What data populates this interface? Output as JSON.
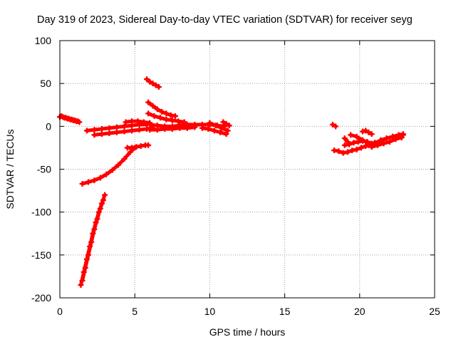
{
  "chart_data": {
    "type": "scatter",
    "title": "Day 319 of 2023, Sidereal Day-to-day VTEC variation (SDTVAR) for receiver seyg",
    "xlabel": "GPS time / hours",
    "ylabel": "SDTVAR / TECUs",
    "xlim": [
      0,
      25
    ],
    "ylim": [
      -200,
      100
    ],
    "xticks": [
      0,
      5,
      10,
      15,
      20,
      25
    ],
    "yticks": [
      -200,
      -150,
      -100,
      -50,
      0,
      50,
      100
    ],
    "xtick_labels": [
      "0",
      "5",
      "10",
      "15",
      "20",
      "25"
    ],
    "ytick_labels": [
      "-200",
      "-150",
      "-100",
      "-50",
      "0",
      "50",
      "100"
    ],
    "grid": true,
    "legend": "none",
    "marker": "plus",
    "series": [
      {
        "name": "SDTVAR",
        "color": "#ff0000",
        "segments": [
          {
            "x": [
              0.0,
              0.2,
              0.4,
              0.6,
              0.8,
              1.0,
              1.2
            ],
            "y": [
              11,
              11,
              10,
              9,
              8,
              7,
              6
            ]
          },
          {
            "x": [
              0.1,
              0.3,
              0.5,
              0.7,
              0.9,
              1.1,
              1.3
            ],
            "y": [
              12,
              10,
              9,
              8,
              7,
              6,
              5
            ]
          },
          {
            "x": [
              1.4,
              1.6,
              1.8,
              2.0,
              2.2,
              2.4,
              2.6,
              2.8,
              3.0
            ],
            "y": [
              -185,
              -170,
              -155,
              -140,
              -125,
              -112,
              -100,
              -90,
              -80
            ]
          },
          {
            "x": [
              1.5,
              1.7,
              1.9,
              2.1,
              2.3,
              2.5,
              2.7,
              2.9
            ],
            "y": [
              -180,
              -165,
              -150,
              -135,
              -120,
              -108,
              -96,
              -86
            ]
          },
          {
            "x": [
              1.5,
              1.9,
              2.3,
              2.7,
              3.1,
              3.5,
              3.9,
              4.3,
              4.7,
              5.0
            ],
            "y": [
              -67,
              -65,
              -63,
              -60,
              -56,
              -51,
              -45,
              -38,
              -30,
              -25
            ]
          },
          {
            "x": [
              4.5,
              4.8,
              5.1,
              5.4,
              5.7,
              5.9
            ],
            "y": [
              -25,
              -25,
              -24,
              -23,
              -22,
              -22
            ]
          },
          {
            "x": [
              1.8,
              2.3,
              2.8,
              3.3,
              3.8,
              4.3,
              4.8,
              5.3,
              5.8
            ],
            "y": [
              -5,
              -4,
              -3,
              -2,
              -1,
              0,
              1,
              2,
              2
            ]
          },
          {
            "x": [
              2.3,
              2.8,
              3.3,
              3.8,
              4.3,
              4.8,
              5.3,
              5.8,
              6.2
            ],
            "y": [
              -10,
              -9,
              -8,
              -7,
              -6,
              -5,
              -4,
              -3,
              -2
            ]
          },
          {
            "x": [
              4.4,
              4.8,
              5.2,
              5.6,
              6.0
            ],
            "y": [
              5,
              6,
              6,
              5,
              4
            ]
          },
          {
            "x": [
              5.8,
              6.0,
              6.2,
              6.4,
              6.6
            ],
            "y": [
              55,
              52,
              50,
              48,
              46
            ]
          },
          {
            "x": [
              5.9,
              6.2,
              6.5,
              6.8,
              7.1,
              7.4,
              7.7
            ],
            "y": [
              28,
              24,
              20,
              17,
              15,
              13,
              12
            ]
          },
          {
            "x": [
              5.9,
              6.3,
              6.7,
              7.1,
              7.5,
              7.9,
              8.3
            ],
            "y": [
              15,
              12,
              10,
              8,
              7,
              6,
              5
            ]
          },
          {
            "x": [
              6.0,
              6.5,
              7.0,
              7.5,
              8.0,
              8.5,
              9.0,
              9.5,
              10.0,
              10.5,
              11.0
            ],
            "y": [
              2,
              1,
              0,
              0,
              1,
              2,
              2,
              2,
              2,
              1,
              0
            ]
          },
          {
            "x": [
              6.0,
              6.5,
              7.0,
              7.5,
              8.0,
              8.5,
              9.0
            ],
            "y": [
              -4,
              -4,
              -3,
              -3,
              -2,
              -2,
              -1
            ]
          },
          {
            "x": [
              9.5,
              9.9,
              10.3,
              10.7,
              11.1
            ],
            "y": [
              -2,
              -3,
              -5,
              -7,
              -9
            ]
          },
          {
            "x": [
              10.0,
              10.4,
              10.8,
              11.2
            ],
            "y": [
              4,
              1,
              -2,
              -5
            ]
          },
          {
            "x": [
              10.9,
              11.1,
              11.3
            ],
            "y": [
              5,
              3,
              1
            ]
          },
          {
            "x": [
              18.2,
              18.4
            ],
            "y": [
              2,
              0
            ]
          },
          {
            "x": [
              18.3,
              18.6,
              18.9,
              19.2,
              19.5,
              19.8,
              20.1,
              20.4,
              20.7
            ],
            "y": [
              -28,
              -29,
              -31,
              -30,
              -28,
              -27,
              -25,
              -23,
              -22
            ]
          },
          {
            "x": [
              19.0,
              19.3,
              19.6,
              19.9,
              20.2,
              20.5,
              20.8,
              21.1
            ],
            "y": [
              -22,
              -21,
              -19,
              -18,
              -17,
              -18,
              -20,
              -21
            ]
          },
          {
            "x": [
              19.4,
              19.8,
              20.2,
              20.6
            ],
            "y": [
              -10,
              -12,
              -16,
              -20
            ]
          },
          {
            "x": [
              19.0,
              19.2
            ],
            "y": [
              -14,
              -18
            ]
          },
          {
            "x": [
              20.2,
              20.4,
              20.6,
              20.8
            ],
            "y": [
              -6,
              -5,
              -7,
              -9
            ]
          },
          {
            "x": [
              20.6,
              21.0,
              21.4,
              21.8,
              22.2,
              22.6,
              22.9
            ],
            "y": [
              -22,
              -19,
              -17,
              -14,
              -12,
              -10,
              -9
            ]
          },
          {
            "x": [
              20.8,
              21.2,
              21.6,
              22.0,
              22.4,
              22.8
            ],
            "y": [
              -24,
              -22,
              -20,
              -18,
              -15,
              -13
            ]
          },
          {
            "x": [
              21.4,
              21.8,
              22.2,
              22.6,
              22.9
            ],
            "y": [
              -16,
              -14,
              -12,
              -11,
              -10
            ]
          }
        ]
      }
    ]
  }
}
